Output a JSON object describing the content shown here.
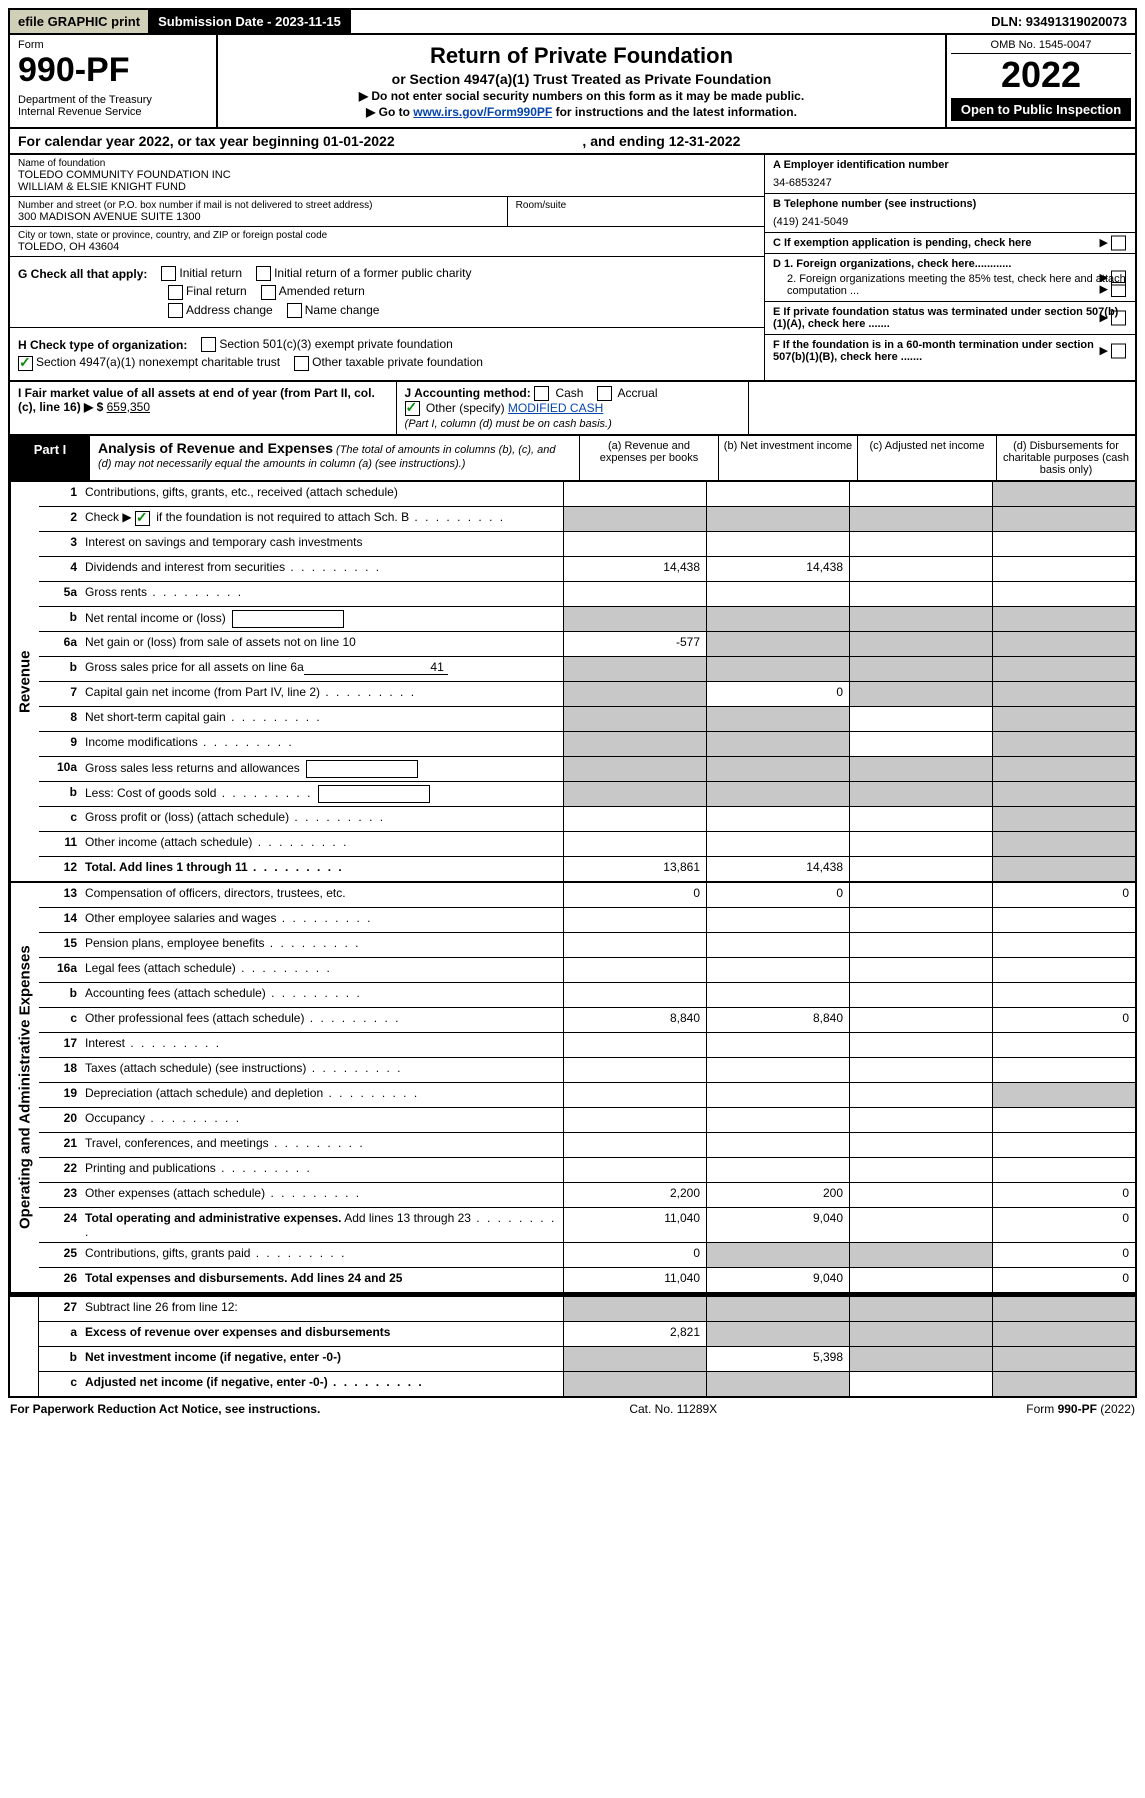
{
  "colors": {
    "link": "#0645ad",
    "check": "#0a8a0a",
    "shaded": "#c8c8c8",
    "efile_bg": "#d0d0b8"
  },
  "topbar": {
    "efile": "efile GRAPHIC print",
    "submission": "Submission Date - 2023-11-15",
    "dln": "DLN: 93491319020073"
  },
  "header": {
    "form_word": "Form",
    "form_number": "990-PF",
    "dept": "Department of the Treasury\nInternal Revenue Service",
    "title": "Return of Private Foundation",
    "subtitle": "or Section 4947(a)(1) Trust Treated as Private Foundation",
    "note1": "▶ Do not enter social security numbers on this form as it may be made public.",
    "note2_prefix": "▶ Go to ",
    "note2_link": "www.irs.gov/Form990PF",
    "note2_suffix": " for instructions and the latest information.",
    "omb": "OMB No. 1545-0047",
    "year": "2022",
    "open": "Open to Public Inspection"
  },
  "calyear": {
    "text_prefix": "For calendar year 2022, or tax year beginning ",
    "begin": "01-01-2022",
    "mid": " , and ending ",
    "end": "12-31-2022"
  },
  "info": {
    "name_label": "Name of foundation",
    "name": "TOLEDO COMMUNITY FOUNDATION INC\nWILLIAM & ELSIE KNIGHT FUND",
    "street_label": "Number and street (or P.O. box number if mail is not delivered to street address)",
    "street": "300 MADISON AVENUE SUITE 1300",
    "room_label": "Room/suite",
    "city_label": "City or town, state or province, country, and ZIP or foreign postal code",
    "city": "TOLEDO, OH  43604",
    "A_label": "A Employer identification number",
    "A_value": "34-6853247",
    "B_label": "B Telephone number (see instructions)",
    "B_value": "(419) 241-5049",
    "C_label": "C If exemption application is pending, check here",
    "D1": "D 1. Foreign organizations, check here............",
    "D2": "2. Foreign organizations meeting the 85% test, check here and attach computation ...",
    "E": "E  If private foundation status was terminated under section 507(b)(1)(A), check here .......",
    "F": "F  If the foundation is in a 60-month termination under section 507(b)(1)(B), check here ......."
  },
  "checks": {
    "G_label": "G Check all that apply:",
    "initial": "Initial return",
    "initial_former": "Initial return of a former public charity",
    "final": "Final return",
    "amended": "Amended return",
    "address": "Address change",
    "name": "Name change",
    "H_label": "H Check type of organization:",
    "H_501c3": "Section 501(c)(3) exempt private foundation",
    "H_4947": "Section 4947(a)(1) nonexempt charitable trust",
    "H_other": "Other taxable private foundation",
    "I_label": "I Fair market value of all assets at end of year (from Part II, col. (c), line 16) ▶ $",
    "I_value": "659,350",
    "J_label": "J Accounting method:",
    "J_cash": "Cash",
    "J_accrual": "Accrual",
    "J_other": "Other (specify)",
    "J_other_val": "MODIFIED CASH",
    "J_note": "(Part I, column (d) must be on cash basis.)"
  },
  "part1": {
    "label": "Part I",
    "title": "Analysis of Revenue and Expenses",
    "note": " (The total of amounts in columns (b), (c), and (d) may not necessarily equal the amounts in column (a) (see instructions).)",
    "col_a": "(a)   Revenue and expenses per books",
    "col_b": "(b)   Net investment income",
    "col_c": "(c)   Adjusted net income",
    "col_d": "(d)  Disbursements for charitable purposes (cash basis only)"
  },
  "sides": {
    "revenue": "Revenue",
    "opex": "Operating and Administrative Expenses"
  },
  "lines": {
    "1": {
      "n": "1",
      "t": "Contributions, gifts, grants, etc., received (attach schedule)",
      "d_shade": true
    },
    "2": {
      "n": "2",
      "t_prefix": "Check ▶ ",
      "t_suffix": " if the foundation is not required to attach Sch. B",
      "checked": true,
      "all_shade": true,
      "dots": true
    },
    "3": {
      "n": "3",
      "t": "Interest on savings and temporary cash investments"
    },
    "4": {
      "n": "4",
      "t": "Dividends and interest from securities",
      "a": "14,438",
      "b": "14,438",
      "dots": true
    },
    "5a": {
      "n": "5a",
      "t": "Gross rents",
      "dots": true
    },
    "5b": {
      "n": "b",
      "t": "Net rental income or (loss)",
      "box": true,
      "all_shade": true
    },
    "6a": {
      "n": "6a",
      "t": "Net gain or (loss) from sale of assets not on line 10",
      "a": "-577",
      "bcd_shade": true
    },
    "6b": {
      "n": "b",
      "t": "Gross sales price for all assets on line 6a",
      "ul": "41",
      "all_shade": true
    },
    "7": {
      "n": "7",
      "t": "Capital gain net income (from Part IV, line 2)",
      "b": "0",
      "a_shade": true,
      "cd_shade": true,
      "dots": true
    },
    "8": {
      "n": "8",
      "t": "Net short-term capital gain",
      "ab_shade": true,
      "d_shade": true,
      "dots": true
    },
    "9": {
      "n": "9",
      "t": "Income modifications",
      "ab_shade": true,
      "d_shade": true,
      "dots": true
    },
    "10a": {
      "n": "10a",
      "t": "Gross sales less returns and allowances",
      "box": true,
      "all_shade": true
    },
    "10b": {
      "n": "b",
      "t": "Less: Cost of goods sold",
      "box": true,
      "all_shade": true,
      "dots": true
    },
    "10c": {
      "n": "c",
      "t": "Gross profit or (loss) (attach schedule)",
      "d_shade": true,
      "dots": true
    },
    "11": {
      "n": "11",
      "t": "Other income (attach schedule)",
      "d_shade": true,
      "dots": true
    },
    "12": {
      "n": "12",
      "t": "Total. Add lines 1 through 11",
      "a": "13,861",
      "b": "14,438",
      "d_shade": true,
      "bold": true,
      "dots": true
    },
    "13": {
      "n": "13",
      "t": "Compensation of officers, directors, trustees, etc.",
      "a": "0",
      "b": "0",
      "d": "0"
    },
    "14": {
      "n": "14",
      "t": "Other employee salaries and wages",
      "dots": true
    },
    "15": {
      "n": "15",
      "t": "Pension plans, employee benefits",
      "dots": true
    },
    "16a": {
      "n": "16a",
      "t": "Legal fees (attach schedule)",
      "dots": true
    },
    "16b": {
      "n": "b",
      "t": "Accounting fees (attach schedule)",
      "dots": true
    },
    "16c": {
      "n": "c",
      "t": "Other professional fees (attach schedule)",
      "a": "8,840",
      "b": "8,840",
      "d": "0",
      "dots": true
    },
    "17": {
      "n": "17",
      "t": "Interest",
      "dots": true
    },
    "18": {
      "n": "18",
      "t": "Taxes (attach schedule) (see instructions)",
      "dots": true
    },
    "19": {
      "n": "19",
      "t": "Depreciation (attach schedule) and depletion",
      "d_shade": true,
      "dots": true
    },
    "20": {
      "n": "20",
      "t": "Occupancy",
      "dots": true
    },
    "21": {
      "n": "21",
      "t": "Travel, conferences, and meetings",
      "dots": true
    },
    "22": {
      "n": "22",
      "t": "Printing and publications",
      "dots": true
    },
    "23": {
      "n": "23",
      "t": "Other expenses (attach schedule)",
      "a": "2,200",
      "b": "200",
      "d": "0",
      "dots": true
    },
    "24": {
      "n": "24",
      "t": "Total operating and administrative expenses. Add lines 13 through 23",
      "a": "11,040",
      "b": "9,040",
      "d": "0",
      "bold_first": true,
      "dots": true
    },
    "25": {
      "n": "25",
      "t": "Contributions, gifts, grants paid",
      "a": "0",
      "d": "0",
      "bc_shade": true,
      "dots": true
    },
    "26": {
      "n": "26",
      "t": "Total expenses and disbursements. Add lines 24 and 25",
      "a": "11,040",
      "b": "9,040",
      "d": "0",
      "bold": true
    },
    "27": {
      "n": "27",
      "t": "Subtract line 26 from line 12:",
      "all_shade": true
    },
    "27a": {
      "n": "a",
      "t": "Excess of revenue over expenses and disbursements",
      "a": "2,821",
      "bcd_shade": true,
      "bold": true
    },
    "27b": {
      "n": "b",
      "t": "Net investment income (if negative, enter -0-)",
      "b": "5,398",
      "a_shade": true,
      "cd_shade": true,
      "bold": true
    },
    "27c": {
      "n": "c",
      "t": "Adjusted net income (if negative, enter -0-)",
      "ab_shade": true,
      "d_shade": true,
      "bold": true,
      "dots": true
    }
  },
  "footer": {
    "left": "For Paperwork Reduction Act Notice, see instructions.",
    "mid": "Cat. No. 11289X",
    "right": "Form 990-PF (2022)"
  }
}
